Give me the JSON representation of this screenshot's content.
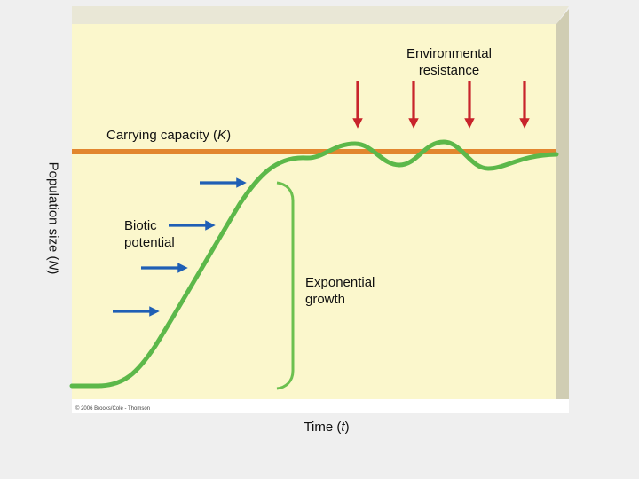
{
  "labels": {
    "environmental_resistance_line1": "Environmental",
    "environmental_resistance_line2": "resistance",
    "carrying_capacity_prefix": "Carrying capacity (",
    "carrying_capacity_symbol": "K",
    "carrying_capacity_suffix": ")",
    "biotic_potential_line1": "Biotic",
    "biotic_potential_line2": "potential",
    "exponential_growth_line1": "Exponential",
    "exponential_growth_line2": "growth",
    "y_axis_prefix": "Population size (",
    "y_axis_symbol": "N",
    "y_axis_suffix": ")",
    "x_axis_prefix": "Time (",
    "x_axis_symbol": "t",
    "x_axis_suffix": ")",
    "copyright": "© 2006 Brooks/Cole - Thomson"
  },
  "colors": {
    "background": "#efefef",
    "panel": "#fbf7cc",
    "panel_side": "#d0cdb3",
    "carrying_capacity_line": "#e2862e",
    "growth_curve": "#5cb84a",
    "bracket": "#6cc04f",
    "environmental_arrows": "#c8242b",
    "biotic_arrows": "#1f5fb5"
  },
  "icons": {
    "environmental_arrow": "down-arrow-icon",
    "biotic_arrow": "right-arrow-icon"
  }
}
